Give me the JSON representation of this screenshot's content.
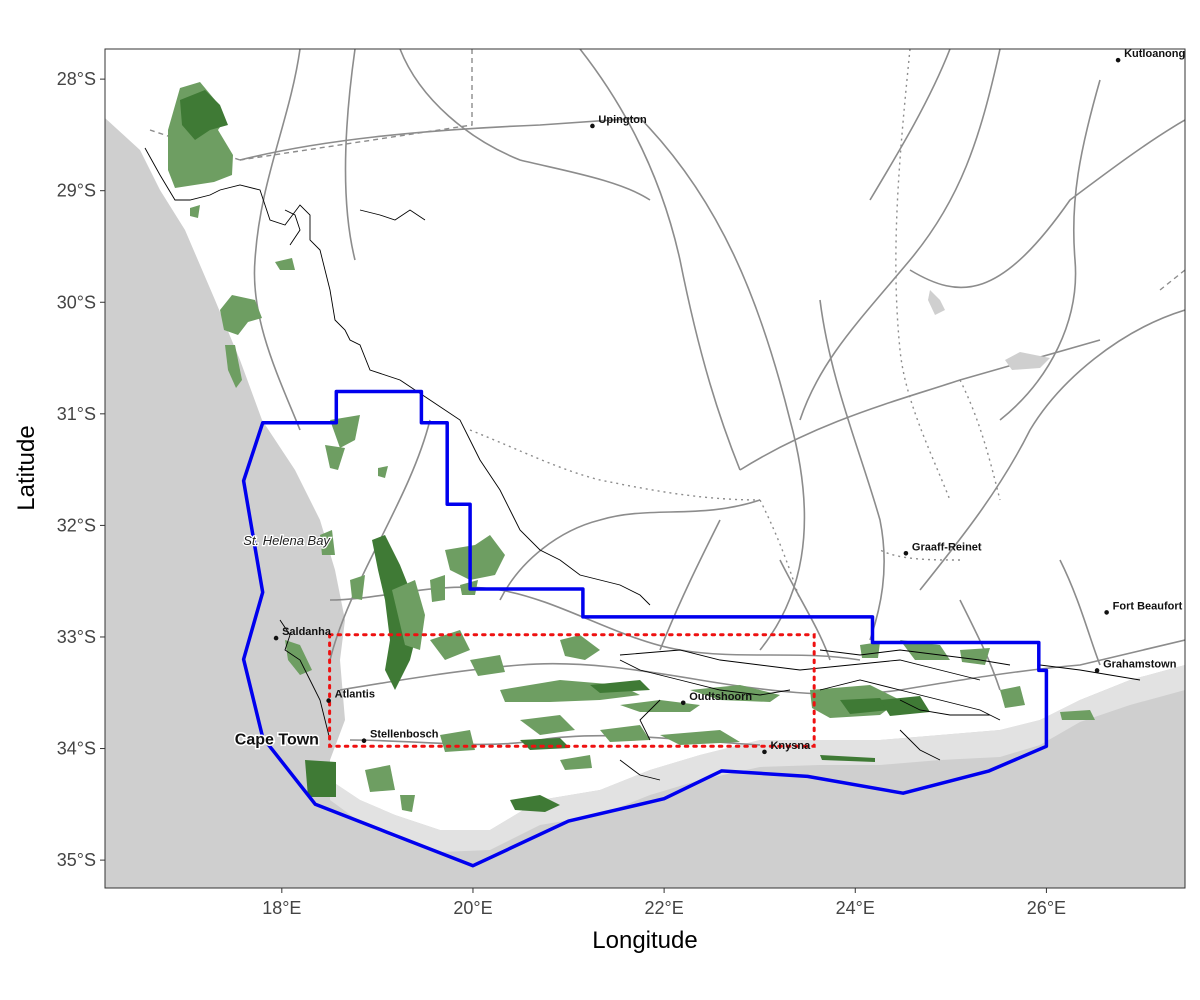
{
  "axes": {
    "xlabel": "Longitude",
    "ylabel": "Latitude",
    "x_ticks": [
      "18°E",
      "20°E",
      "22°E",
      "24°E",
      "26°E"
    ],
    "y_ticks": [
      "28°S",
      "29°S",
      "30°S",
      "31°S",
      "32°S",
      "33°S",
      "34°S",
      "35°S"
    ]
  },
  "places": [
    {
      "name": "Upington",
      "lon": 21.25,
      "lat": -28.42,
      "style": "small"
    },
    {
      "name": "Kutloanong",
      "lon": 26.75,
      "lat": -27.83,
      "style": "small"
    },
    {
      "name": "Graaff-Reinet",
      "lon": 24.53,
      "lat": -32.25,
      "style": "small"
    },
    {
      "name": "Fort Beaufort",
      "lon": 26.63,
      "lat": -32.78,
      "style": "small"
    },
    {
      "name": "Grahamstown",
      "lon": 26.53,
      "lat": -33.3,
      "style": "small"
    },
    {
      "name": "Saldanha",
      "lon": 17.94,
      "lat": -33.01,
      "style": "small"
    },
    {
      "name": "Atlantis",
      "lon": 18.49,
      "lat": -33.57,
      "style": "small"
    },
    {
      "name": "Stellenbosch",
      "lon": 18.86,
      "lat": -33.93,
      "style": "small"
    },
    {
      "name": "Oudtshoorn",
      "lon": 22.2,
      "lat": -33.59,
      "style": "small"
    },
    {
      "name": "Knysna",
      "lon": 23.05,
      "lat": -34.03,
      "style": "small"
    },
    {
      "name": "Cape Town",
      "lon": 18.42,
      "lat": -33.92,
      "style": "big"
    }
  ],
  "water_labels": [
    {
      "name": "St. Helena Bay",
      "lon": 18.05,
      "lat": -32.13
    }
  ],
  "colors": {
    "ocean": "#cfcfcf",
    "land": "#ffffff",
    "road": "#8c8c8c",
    "protected_light": "#6e9e62",
    "protected_dark": "#3f7a35",
    "study_boundary": "#0000ee",
    "inner_box": "#ee1111",
    "coastline": "#000000"
  },
  "chart_data": {
    "type": "map",
    "xlabel": "Longitude",
    "ylabel": "Latitude",
    "xlim": [
      16.15,
      27.45
    ],
    "ylim": [
      -35.25,
      -27.73
    ],
    "x_ticks": [
      18,
      20,
      22,
      24,
      26
    ],
    "y_ticks": [
      -28,
      -29,
      -30,
      -31,
      -32,
      -33,
      -34,
      -35
    ],
    "grid": false,
    "study_area_boundary": [
      [
        17.8,
        -31.08
      ],
      [
        18.57,
        -31.08
      ],
      [
        18.57,
        -30.8
      ],
      [
        19.46,
        -30.8
      ],
      [
        19.46,
        -31.08
      ],
      [
        19.73,
        -31.08
      ],
      [
        19.73,
        -31.81
      ],
      [
        19.97,
        -31.81
      ],
      [
        19.97,
        -32.57
      ],
      [
        21.15,
        -32.57
      ],
      [
        21.15,
        -32.82
      ],
      [
        24.18,
        -32.82
      ],
      [
        24.18,
        -33.05
      ],
      [
        25.92,
        -33.05
      ],
      [
        25.92,
        -33.3
      ],
      [
        26.0,
        -33.3
      ],
      [
        26.0,
        -33.98
      ],
      [
        25.4,
        -34.2
      ],
      [
        24.5,
        -34.4
      ],
      [
        23.5,
        -34.25
      ],
      [
        22.6,
        -34.2
      ],
      [
        22.0,
        -34.45
      ],
      [
        21.0,
        -34.65
      ],
      [
        20.0,
        -35.05
      ],
      [
        19.1,
        -34.75
      ],
      [
        18.35,
        -34.5
      ],
      [
        17.8,
        -33.9
      ],
      [
        17.6,
        -33.2
      ],
      [
        17.8,
        -32.6
      ],
      [
        17.6,
        -31.6
      ],
      [
        17.8,
        -31.08
      ]
    ],
    "inner_box": {
      "lon": [
        18.5,
        23.57
      ],
      "lat": [
        -33.98,
        -32.98
      ]
    }
  }
}
